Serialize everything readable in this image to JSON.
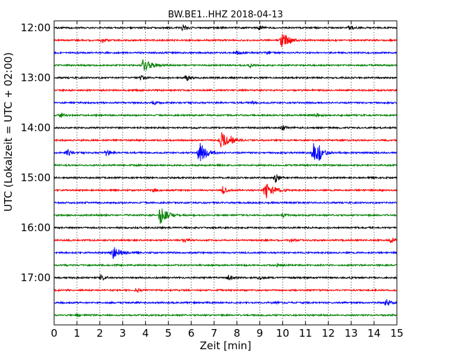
{
  "chart_data": {
    "type": "line",
    "title": "BW.BE1..HHZ 2018-04-13",
    "xlabel": "Zeit  [min]",
    "ylabel": "UTC (Lokalzeit = UTC + 02:00)",
    "xlim": [
      0,
      15
    ],
    "x_ticks": [
      "0",
      "1",
      "2",
      "3",
      "4",
      "5",
      "6",
      "7",
      "8",
      "9",
      "10",
      "11",
      "12",
      "13",
      "14",
      "15"
    ],
    "y_ticks": [
      "12:00",
      "13:00",
      "14:00",
      "15:00",
      "16:00",
      "17:00"
    ],
    "grid": "vertical dotted",
    "trace_interval_minutes": 15,
    "colors": [
      "#000000",
      "#ff0000",
      "#0000ff",
      "#008000"
    ],
    "traces": [
      {
        "start": "12:00",
        "events": [
          {
            "t": 5.65,
            "a": 4
          },
          {
            "t": 9.0,
            "a": 3
          },
          {
            "t": 12.95,
            "a": 5
          }
        ]
      },
      {
        "start": "12:15",
        "events": [
          {
            "t": 2.1,
            "a": 4
          },
          {
            "t": 9.95,
            "a": 10
          },
          {
            "t": 10.2,
            "a": 5
          }
        ]
      },
      {
        "start": "12:30",
        "events": [
          {
            "t": 8.0,
            "a": 3
          },
          {
            "t": 9.3,
            "a": 3
          }
        ]
      },
      {
        "start": "12:45",
        "events": [
          {
            "t": 3.9,
            "a": 11
          },
          {
            "t": 8.6,
            "a": 3
          }
        ]
      },
      {
        "start": "13:00",
        "events": [
          {
            "t": 3.8,
            "a": 3
          },
          {
            "t": 5.8,
            "a": 5
          }
        ]
      },
      {
        "start": "13:15",
        "events": []
      },
      {
        "start": "13:30",
        "events": [
          {
            "t": 4.35,
            "a": 3
          },
          {
            "t": 8.65,
            "a": 2
          }
        ]
      },
      {
        "start": "13:45",
        "events": [
          {
            "t": 0.3,
            "a": 3
          },
          {
            "t": 11.5,
            "a": 3
          }
        ]
      },
      {
        "start": "14:00",
        "events": [
          {
            "t": 10.0,
            "a": 5
          }
        ]
      },
      {
        "start": "14:15",
        "events": [
          {
            "t": 7.3,
            "a": 12
          },
          {
            "t": 7.75,
            "a": 4
          }
        ]
      },
      {
        "start": "14:30",
        "events": [
          {
            "t": 0.6,
            "a": 5
          },
          {
            "t": 2.3,
            "a": 5
          },
          {
            "t": 6.35,
            "a": 16
          },
          {
            "t": 11.35,
            "a": 13
          },
          {
            "t": 11.6,
            "a": 6
          }
        ]
      },
      {
        "start": "14:45",
        "events": []
      },
      {
        "start": "15:00",
        "events": [
          {
            "t": 9.7,
            "a": 7
          }
        ]
      },
      {
        "start": "15:15",
        "events": [
          {
            "t": 4.4,
            "a": 3
          },
          {
            "t": 7.4,
            "a": 6
          },
          {
            "t": 9.25,
            "a": 14
          }
        ]
      },
      {
        "start": "15:30",
        "events": []
      },
      {
        "start": "15:45",
        "events": [
          {
            "t": 4.65,
            "a": 12
          },
          {
            "t": 10.0,
            "a": 3
          }
        ]
      },
      {
        "start": "16:00",
        "events": []
      },
      {
        "start": "16:15",
        "events": [
          {
            "t": 5.7,
            "a": 3
          },
          {
            "t": 10.35,
            "a": 3
          },
          {
            "t": 14.75,
            "a": 6
          }
        ]
      },
      {
        "start": "16:30",
        "events": [
          {
            "t": 2.55,
            "a": 11
          }
        ]
      },
      {
        "start": "16:45",
        "events": [
          {
            "t": 9.8,
            "a": 4
          }
        ]
      },
      {
        "start": "17:00",
        "events": [
          {
            "t": 2.05,
            "a": 5
          },
          {
            "t": 7.65,
            "a": 4
          },
          {
            "t": 9.0,
            "a": 3
          }
        ]
      },
      {
        "start": "17:15",
        "events": [
          {
            "t": 3.6,
            "a": 3
          }
        ]
      },
      {
        "start": "17:30",
        "events": [
          {
            "t": 9.6,
            "a": 2
          },
          {
            "t": 14.55,
            "a": 8
          }
        ]
      },
      {
        "start": "17:45",
        "events": [
          {
            "t": 1.0,
            "a": 2
          }
        ]
      }
    ]
  }
}
